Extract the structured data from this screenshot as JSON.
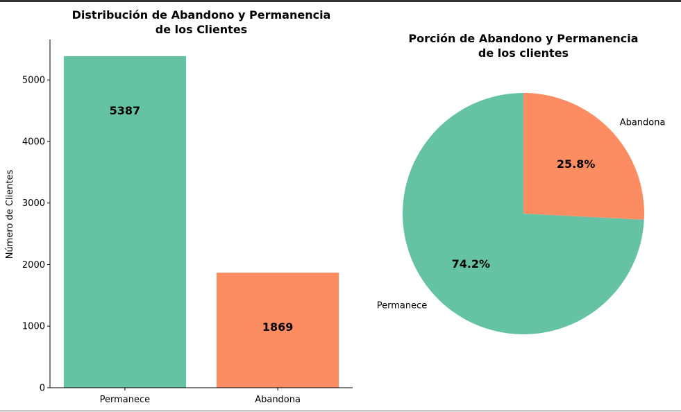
{
  "colors": {
    "permanece": "#66c2a5",
    "abandona": "#fc8d62"
  },
  "chart_data": [
    {
      "type": "bar",
      "title_line1": "Distribución de Abandono y Permanencia",
      "title_line2": "de los Clientes",
      "xlabel": "",
      "ylabel": "Número de Clientes",
      "categories": [
        "Permanece",
        "Abandona"
      ],
      "values": [
        5387,
        1869
      ],
      "value_labels": [
        "5387",
        "1869"
      ],
      "yticks": [
        "0",
        "1000",
        "2000",
        "3000",
        "4000",
        "5000"
      ],
      "ylim": [
        0,
        5656
      ],
      "grid": false
    },
    {
      "type": "pie",
      "title_line1": "Porción de Abandono y Permanencia",
      "title_line2": "de los clientes",
      "labels": [
        "Permanece",
        "Abandona"
      ],
      "values": [
        74.2,
        25.8
      ],
      "pct_labels": [
        "74.2%",
        "25.8%"
      ]
    }
  ]
}
